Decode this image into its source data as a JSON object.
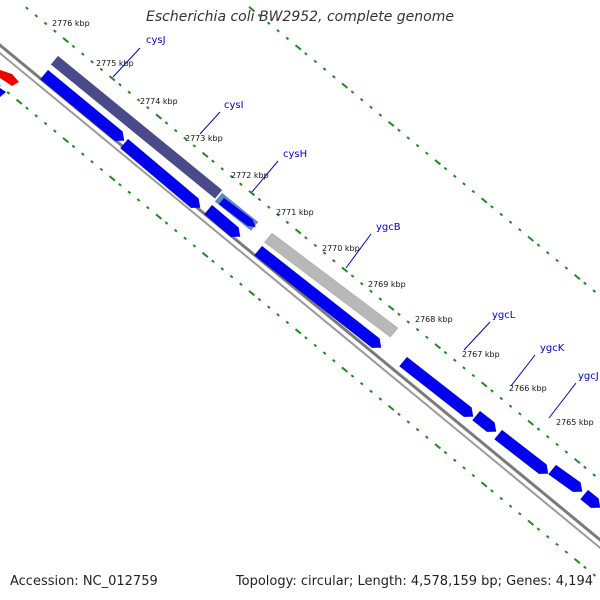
{
  "title": "Escherichia coli BW2952, complete genome",
  "footer": {
    "accession": "Accession: NC_012759",
    "summary": "Topology: circular; Length: 4,578,159 bp; Genes: 4,194"
  },
  "colors": {
    "backbone": "#7a7a7a",
    "cds": "#0000ee",
    "rna_red": "#ee0000",
    "gene_dark": "#4a4a8a",
    "gene_light": "#b8b8b8",
    "gene_teal": "#5a8ac6",
    "tick_green": "#1f8a1f",
    "gene_label": "#0000cc"
  },
  "kbp_labels": [
    "2776 kbp",
    "2775 kbp",
    "2774 kbp",
    "2773 kbp",
    "2772 kbp",
    "2771 kbp",
    "2770 kbp",
    "2769 kbp",
    "2768 kbp",
    "2767 kbp",
    "2766 kbp",
    "2765 kbp"
  ],
  "gene_labels": [
    "cysJ",
    "cysI",
    "cysH",
    "ygcB",
    "ygcL",
    "ygcK",
    "ygcJ"
  ]
}
